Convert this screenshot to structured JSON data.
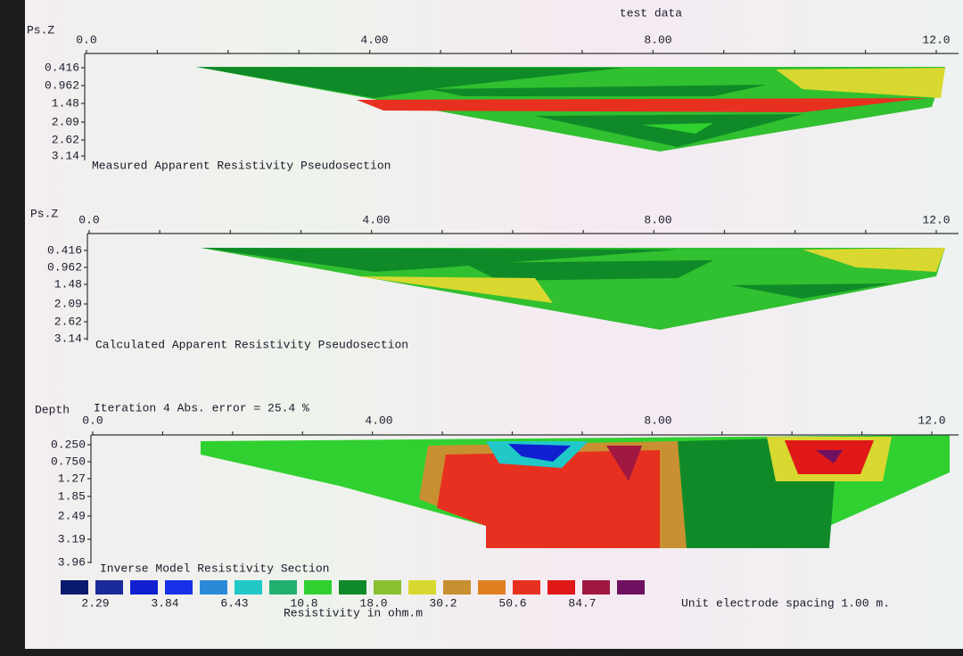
{
  "header": {
    "title": "test data"
  },
  "panels": [
    {
      "axis_label": "Ps.Z",
      "x_ticks": [
        "0.0",
        "4.00",
        "8.00",
        "12.0"
      ],
      "y_ticks": [
        "0.416",
        "0.962",
        "1.48",
        "2.09",
        "2.62",
        "3.14"
      ],
      "title": "Measured Apparent Resistivity Pseudosection"
    },
    {
      "axis_label": "Ps.Z",
      "x_ticks": [
        "0.0",
        "4.00",
        "8.00",
        "12.0"
      ],
      "y_ticks": [
        "0.416",
        "0.962",
        "1.48",
        "2.09",
        "2.62",
        "3.14"
      ],
      "title": "Calculated Apparent Resistivity Pseudosection"
    },
    {
      "axis_label": "Depth",
      "note": "Iteration 4 Abs. error = 25.4 %",
      "x_ticks": [
        "0.0",
        "4.00",
        "8.00",
        "12.0"
      ],
      "y_ticks": [
        "0.250",
        "0.750",
        "1.27",
        "1.85",
        "2.49",
        "3.19",
        "3.96"
      ],
      "title": "Inverse Model Resistivity Section"
    }
  ],
  "legend": {
    "labels": [
      "2.29",
      "3.84",
      "6.43",
      "10.8",
      "18.0",
      "30.2",
      "50.6",
      "84.7"
    ],
    "caption": "Resistivity in ohm.m"
  },
  "footer": {
    "spacing": "Unit electrode spacing 1.00 m."
  }
}
